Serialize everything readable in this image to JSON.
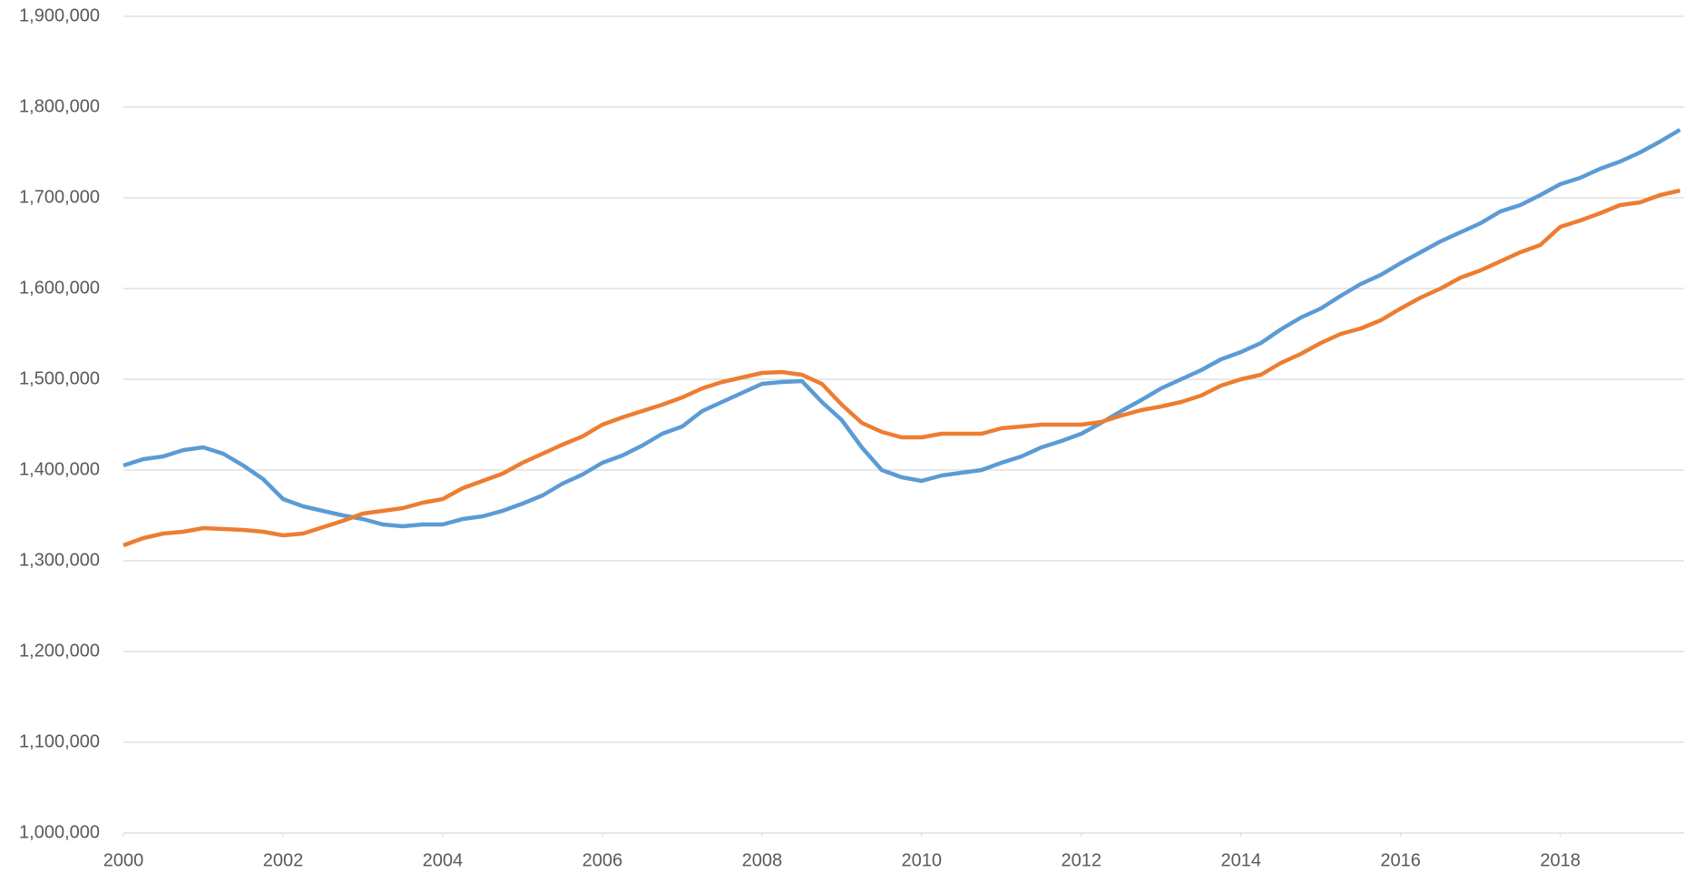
{
  "chart_data": {
    "type": "line",
    "x": [
      2000,
      2000.25,
      2000.5,
      2000.75,
      2001,
      2001.25,
      2001.5,
      2001.75,
      2002,
      2002.25,
      2002.5,
      2002.75,
      2003,
      2003.25,
      2003.5,
      2003.75,
      2004,
      2004.25,
      2004.5,
      2004.75,
      2005,
      2005.25,
      2005.5,
      2005.75,
      2006,
      2006.25,
      2006.5,
      2006.75,
      2007,
      2007.25,
      2007.5,
      2007.75,
      2008,
      2008.25,
      2008.5,
      2008.75,
      2009,
      2009.25,
      2009.5,
      2009.75,
      2010,
      2010.25,
      2010.5,
      2010.75,
      2011,
      2011.25,
      2011.5,
      2011.75,
      2012,
      2012.25,
      2012.5,
      2012.75,
      2013,
      2013.25,
      2013.5,
      2013.75,
      2014,
      2014.25,
      2014.5,
      2014.75,
      2015,
      2015.25,
      2015.5,
      2015.75,
      2016,
      2016.25,
      2016.5,
      2016.75,
      2017,
      2017.25,
      2017.5,
      2017.75,
      2018,
      2018.25,
      2018.5,
      2018.75,
      2019,
      2019.25,
      2019.5
    ],
    "series": [
      {
        "color": "#5b9bd5",
        "values": [
          1405000,
          1412000,
          1415000,
          1422000,
          1425000,
          1418000,
          1405000,
          1390000,
          1368000,
          1360000,
          1355000,
          1350000,
          1346000,
          1340000,
          1338000,
          1340000,
          1340000,
          1346000,
          1349000,
          1355000,
          1363000,
          1372000,
          1385000,
          1395000,
          1408000,
          1416000,
          1427000,
          1440000,
          1448000,
          1465000,
          1475000,
          1485000,
          1495000,
          1497000,
          1498000,
          1475000,
          1455000,
          1425000,
          1400000,
          1392000,
          1388000,
          1394000,
          1397000,
          1400000,
          1408000,
          1415000,
          1425000,
          1432000,
          1440000,
          1452000,
          1465000,
          1477000,
          1490000,
          1500000,
          1510000,
          1522000,
          1530000,
          1540000,
          1555000,
          1568000,
          1578000,
          1592000,
          1605000,
          1615000,
          1628000,
          1640000,
          1652000,
          1662000,
          1672000,
          1685000,
          1692000,
          1703000,
          1715000,
          1722000,
          1732000,
          1740000,
          1750000,
          1762000,
          1775000
        ]
      },
      {
        "color": "#ed7d31",
        "values": [
          1317000,
          1325000,
          1330000,
          1332000,
          1336000,
          1335000,
          1334000,
          1332000,
          1328000,
          1330000,
          1337000,
          1344000,
          1352000,
          1355000,
          1358000,
          1364000,
          1368000,
          1380000,
          1388000,
          1396000,
          1408000,
          1418000,
          1428000,
          1437000,
          1450000,
          1458000,
          1465000,
          1472000,
          1480000,
          1490000,
          1497000,
          1502000,
          1507000,
          1508000,
          1505000,
          1495000,
          1472000,
          1452000,
          1442000,
          1436000,
          1436000,
          1440000,
          1440000,
          1440000,
          1446000,
          1448000,
          1450000,
          1450000,
          1450000,
          1453000,
          1460000,
          1466000,
          1470000,
          1475000,
          1482000,
          1493000,
          1500000,
          1505000,
          1518000,
          1528000,
          1540000,
          1550000,
          1556000,
          1565000,
          1578000,
          1590000,
          1600000,
          1612000,
          1620000,
          1630000,
          1640000,
          1648000,
          1668000,
          1675000,
          1683000,
          1692000,
          1695000,
          1703000,
          1708000
        ]
      }
    ],
    "xlim": [
      2000,
      2019.55
    ],
    "xticks": [
      2000,
      2002,
      2004,
      2006,
      2008,
      2010,
      2012,
      2014,
      2016,
      2018
    ],
    "ylim": [
      1000000,
      1900000
    ],
    "yticks": [
      {
        "value": 1000000,
        "label": "1,000,000"
      },
      {
        "value": 1100000,
        "label": "1,100,000"
      },
      {
        "value": 1200000,
        "label": "1,200,000"
      },
      {
        "value": 1300000,
        "label": "1,300,000"
      },
      {
        "value": 1400000,
        "label": "1,400,000"
      },
      {
        "value": 1500000,
        "label": "1,500,000"
      },
      {
        "value": 1600000,
        "label": "1,600,000"
      },
      {
        "value": 1700000,
        "label": "1,700,000"
      },
      {
        "value": 1800000,
        "label": "1,800,000"
      },
      {
        "value": 1900000,
        "label": "1,900,000"
      }
    ],
    "grid": true
  }
}
